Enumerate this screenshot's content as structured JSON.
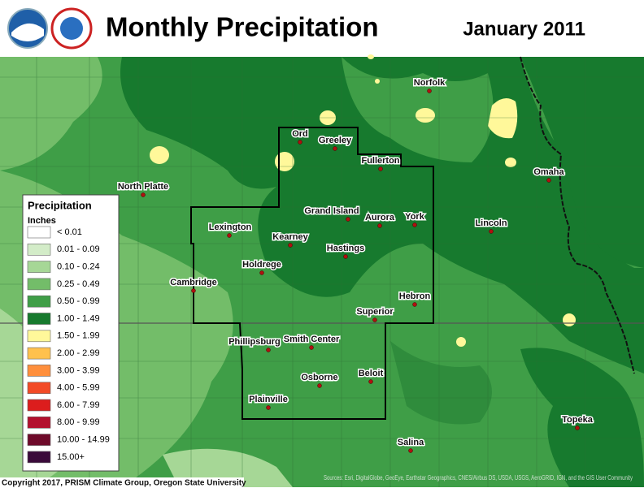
{
  "header": {
    "title": "Monthly Precipitation",
    "date": "January 2011"
  },
  "legend": {
    "title": "Precipitation",
    "units": "Inches",
    "items": [
      {
        "label": "< 0.01",
        "color": "#ffffff"
      },
      {
        "label": "0.01 - 0.09",
        "color": "#d3ecc8"
      },
      {
        "label": "0.10 - 0.24",
        "color": "#a6d796"
      },
      {
        "label": "0.25 - 0.49",
        "color": "#73bd69"
      },
      {
        "label": "0.50 - 0.99",
        "color": "#3f9e47"
      },
      {
        "label": "1.00 - 1.49",
        "color": "#177a2e"
      },
      {
        "label": "1.50 - 1.99",
        "color": "#fff89a"
      },
      {
        "label": "2.00 - 2.99",
        "color": "#ffc14d"
      },
      {
        "label": "3.00 - 3.99",
        "color": "#ff8f3c"
      },
      {
        "label": "4.00 - 5.99",
        "color": "#f24a26"
      },
      {
        "label": "6.00 - 7.99",
        "color": "#dc1d1d"
      },
      {
        "label": "8.00 - 9.99",
        "color": "#b3102e"
      },
      {
        "label": "10.00 - 14.99",
        "color": "#6e0a2a"
      },
      {
        "label": "15.00+",
        "color": "#3a0a3a"
      }
    ]
  },
  "cities": [
    "Norfolk",
    "Ord",
    "Greeley",
    "Fullerton",
    "North Platte",
    "Omaha",
    "Grand Island",
    "Aurora",
    "York",
    "Lincoln",
    "Lexington",
    "Kearney",
    "Hastings",
    "Holdrege",
    "Cambridge",
    "Hebron",
    "Superior",
    "Phillipsburg",
    "Smith Center",
    "Osborne",
    "Beloit",
    "Plainville",
    "Topeka",
    "Salina"
  ],
  "footer": {
    "copyright": "Copyright 2017, PRISM Climate Group, Oregon State University",
    "sources": "Sources: Esri, DigitalGlobe, GeoEye, Earthstar Geographics, CNES/Airbus DS, USDA, USGS, AeroGRID, IGN, and the GIS User Community"
  }
}
